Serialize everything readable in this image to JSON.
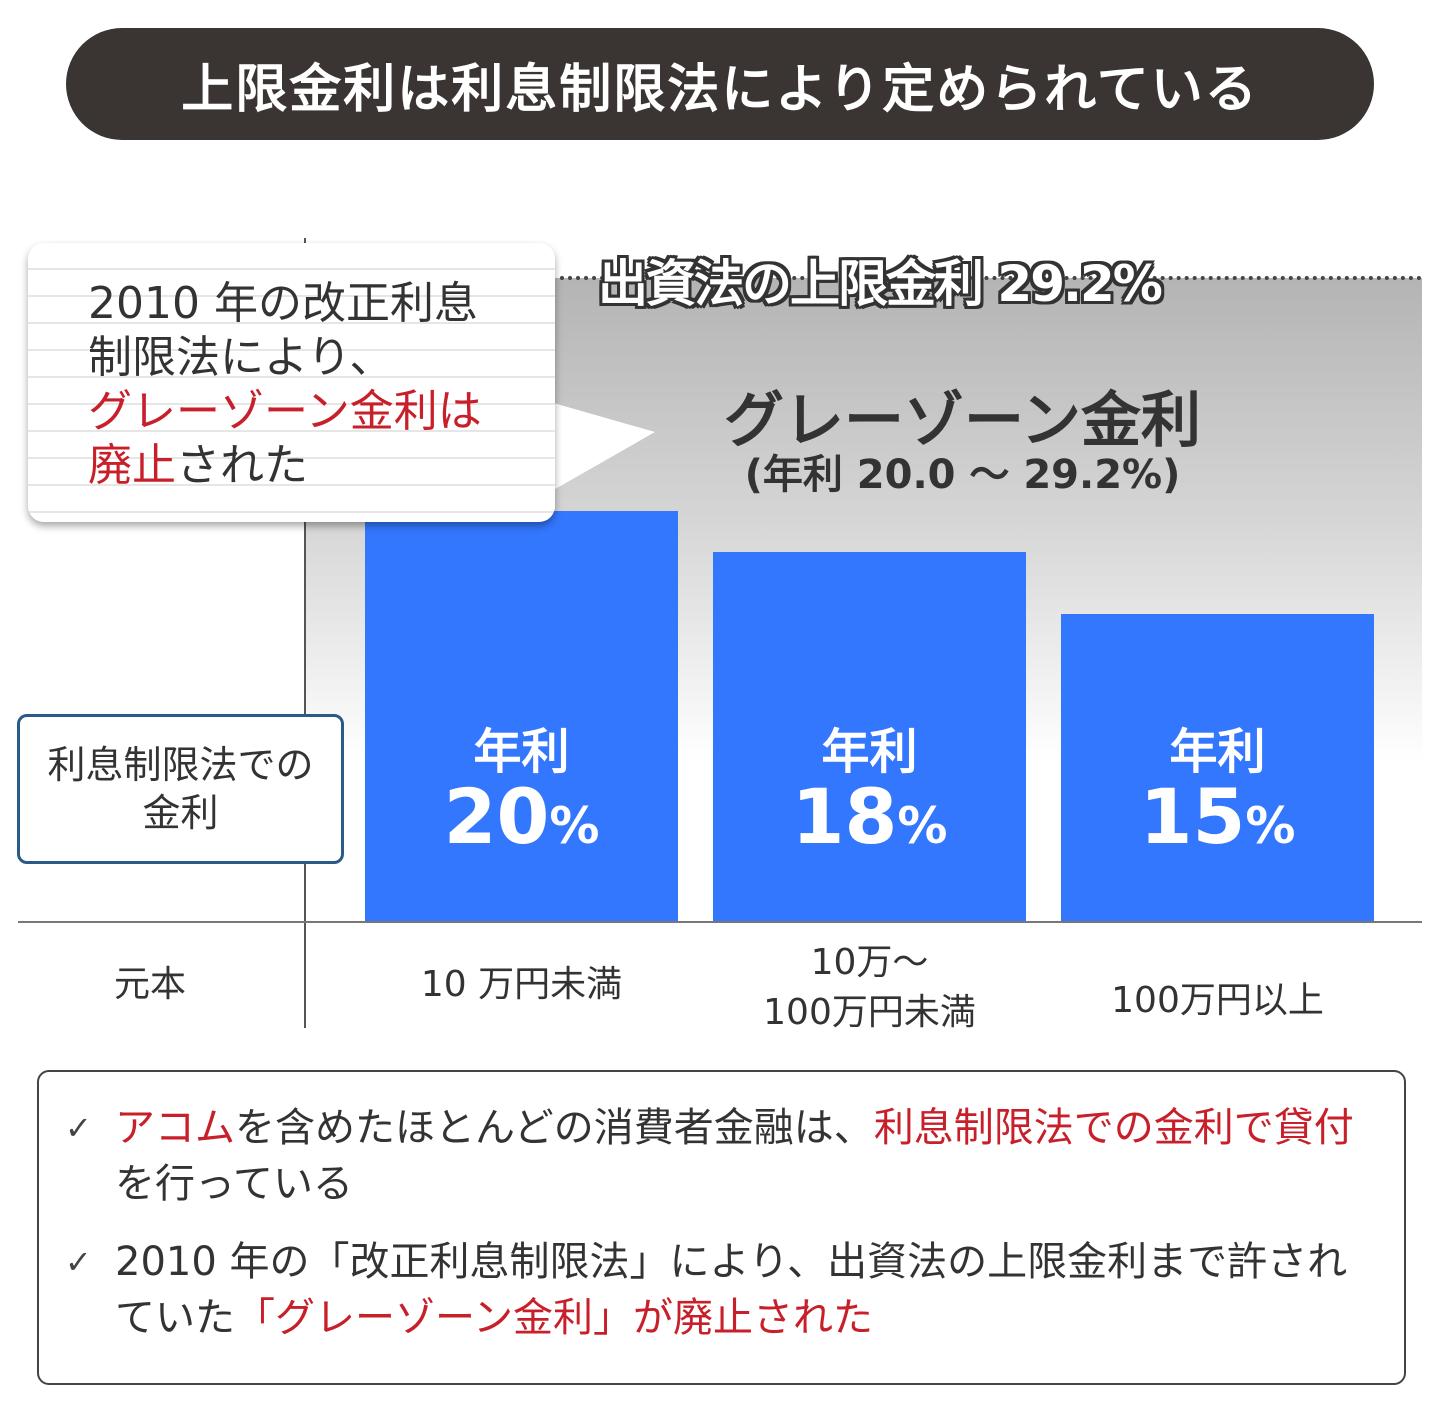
{
  "title": "上限金利は利息制限法により定められている",
  "cap_label": "出資法の上限金利 29.2%",
  "grayzone": {
    "title": "グレーゾーン金利",
    "subtitle": "(年利 20.0 ～ 29.2%)"
  },
  "callout": {
    "line1": "2010 年の改正利息",
    "line2": "制限法により、",
    "line3_red": "グレーゾーン金利は",
    "line4_red": "廃止",
    "line4_rest": "された"
  },
  "legal_box": {
    "line1": "利息制限法での",
    "line2": "金利"
  },
  "x_axis_title": "元本",
  "colors": {
    "bar": "#3377ff",
    "accent_red": "#c8202a",
    "title_bg": "#3a3533"
  },
  "chart_data": {
    "type": "bar",
    "title": "上限金利は利息制限法により定められている",
    "xlabel": "元本",
    "ylabel": "利息制限法での金利",
    "categories": [
      "10 万円未満",
      "10万～ 100万円未満",
      "100万円以上"
    ],
    "category_lines": [
      [
        "10 万円未満"
      ],
      [
        "10万～",
        "100万円未満"
      ],
      [
        "100万円以上"
      ]
    ],
    "values": [
      20,
      18,
      15
    ],
    "bar_prefix": "年利",
    "unit": "%",
    "ylim": [
      0,
      29.2
    ],
    "reference_line": {
      "value": 29.2,
      "label": "出資法の上限金利 29.2%"
    },
    "shaded_band": {
      "from": 20.0,
      "to": 29.2,
      "label": "グレーゾーン金利"
    }
  },
  "notes": [
    {
      "parts": [
        {
          "t": "アコム",
          "red": true
        },
        {
          "t": "を含めたほとんどの消費者金融は、"
        },
        {
          "t": "利息制限法での金利で貸付",
          "red": true
        },
        {
          "t": "を行っている"
        }
      ]
    },
    {
      "parts": [
        {
          "t": "2010 年の「改正利息制限法」により、出資法の上限金利まで許されていた"
        },
        {
          "t": "「グレーゾーン金利」が廃止された",
          "red": true
        }
      ]
    }
  ],
  "check_icon": "✓"
}
